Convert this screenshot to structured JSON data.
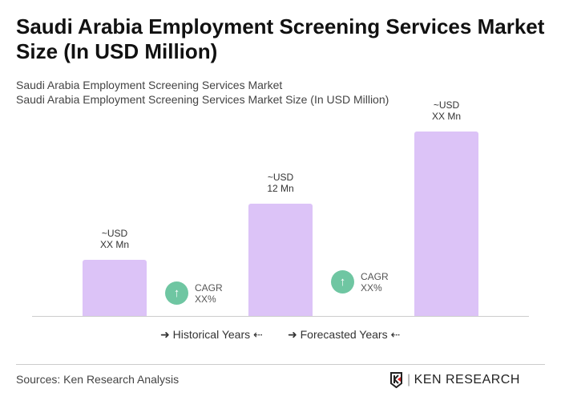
{
  "title": "Saudi Arabia Employment Screening Services Market Size (In USD Million)",
  "subtitle1": "Saudi Arabia Employment Screening Services Market",
  "subtitle2": "Saudi Arabia Employment Screening Services Market Size (In USD Million)",
  "chart_data": {
    "type": "bar",
    "values": [
      6,
      12,
      19.7
    ],
    "data_labels": [
      [
        "~USD",
        "XX Mn"
      ],
      [
        "~USD",
        "12 Mn"
      ],
      [
        "~USD",
        "XX Mn"
      ]
    ],
    "bar_color": "#dcc3f7",
    "cagr": [
      {
        "label": "CAGR",
        "value": "XX%"
      },
      {
        "label": "CAGR",
        "value": "XX%"
      }
    ],
    "cagr_color": "#6fc6a2",
    "legend": [
      "Historical Years",
      "Forecasted Years"
    ],
    "grid": false
  },
  "sources": "Sources: Ken Research Analysis",
  "logo_text": "KEN RESEARCH"
}
